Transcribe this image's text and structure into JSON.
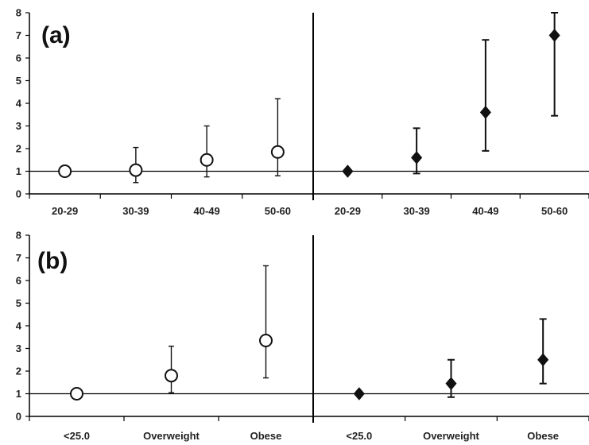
{
  "chart_data": [
    {
      "type": "scatter",
      "panel_label": "(a)",
      "categories_left": [
        "20-29",
        "30-39",
        "40-49",
        "50-60"
      ],
      "categories_right": [
        "20-29",
        "30-39",
        "40-49",
        "50-60"
      ],
      "ylim": [
        0,
        8
      ],
      "yticks": [
        "0",
        "1",
        "2",
        "3",
        "4",
        "5",
        "6",
        "7",
        "8"
      ],
      "reference_line": 1,
      "series": [
        {
          "marker": "open-circle",
          "side": "left",
          "values": [
            1.0,
            1.05,
            1.5,
            1.85
          ],
          "lower": [
            1.0,
            0.5,
            0.75,
            0.8
          ],
          "upper": [
            1.0,
            2.05,
            3.0,
            4.2
          ]
        },
        {
          "marker": "filled-diamond",
          "side": "right",
          "values": [
            1.0,
            1.6,
            3.6,
            7.0
          ],
          "lower": [
            1.0,
            0.9,
            1.9,
            3.45
          ],
          "upper": [
            1.0,
            2.9,
            6.8,
            8.0
          ]
        }
      ]
    },
    {
      "type": "scatter",
      "panel_label": "(b)",
      "categories_left": [
        "<25.0",
        "Overweight",
        "Obese"
      ],
      "categories_right": [
        "<25.0",
        "Overweight",
        "Obese"
      ],
      "ylim": [
        0,
        8
      ],
      "yticks": [
        "0",
        "1",
        "2",
        "3",
        "4",
        "5",
        "6",
        "7",
        "8"
      ],
      "reference_line": 1,
      "series": [
        {
          "marker": "open-circle",
          "side": "left",
          "values": [
            1.0,
            1.8,
            3.35
          ],
          "lower": [
            1.0,
            1.05,
            1.7
          ],
          "upper": [
            1.0,
            3.1,
            6.65
          ]
        },
        {
          "marker": "filled-diamond",
          "side": "right",
          "values": [
            1.0,
            1.45,
            2.5
          ],
          "lower": [
            1.0,
            0.85,
            1.45
          ],
          "upper": [
            1.0,
            2.5,
            4.3
          ]
        }
      ]
    }
  ]
}
